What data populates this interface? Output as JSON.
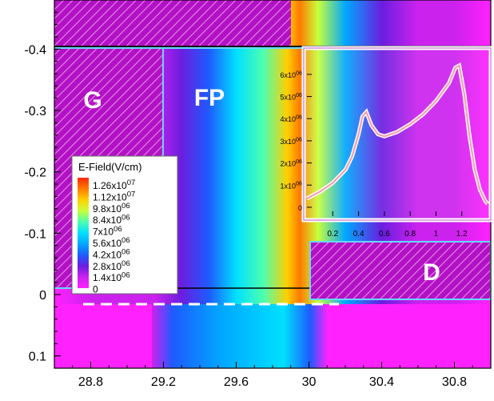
{
  "chart_data": [
    {
      "type": "heatmap",
      "title": "",
      "xlabel": "",
      "ylabel": "",
      "xlim": [
        28.6,
        31.0
      ],
      "ylim": [
        -0.48,
        0.12
      ],
      "y_inverted": true,
      "x_ticks": [
        "28.8",
        "29.2",
        "29.6",
        "30",
        "30.4",
        "30.8"
      ],
      "x_tick_values": [
        28.8,
        29.2,
        29.6,
        30.0,
        30.4,
        30.8
      ],
      "y_ticks": [
        "-0.4",
        "-0.3",
        "-0.2",
        "-0.1",
        "0",
        "0.1"
      ],
      "y_tick_values": [
        -0.4,
        -0.3,
        -0.2,
        -0.1,
        0.0,
        0.1
      ],
      "colorbar": {
        "title": "E-Field(V/cm)",
        "labels": [
          {
            "mantissa": "1.26x10",
            "exp": "07"
          },
          {
            "mantissa": "1.12x10",
            "exp": "07"
          },
          {
            "mantissa": "9.8x10",
            "exp": "06"
          },
          {
            "mantissa": "8.4x10",
            "exp": "06"
          },
          {
            "mantissa": "7x10",
            "exp": "06"
          },
          {
            "mantissa": "5.6x10",
            "exp": "06"
          },
          {
            "mantissa": "4.2x10",
            "exp": "06"
          },
          {
            "mantissa": "2.8x10",
            "exp": "06"
          },
          {
            "mantissa": "1.4x10",
            "exp": "06"
          },
          {
            "mantissa": "0",
            "exp": ""
          }
        ],
        "colors": [
          "#ff2a00",
          "#ff7a00",
          "#ffd000",
          "#c8ff3a",
          "#4dffb0",
          "#00e0ff",
          "#00a8ff",
          "#1e5bff",
          "#6a1ee0",
          "#cc22ee",
          "#ff22ff"
        ]
      },
      "regions": [
        {
          "label": "G"
        },
        {
          "label": "FP"
        },
        {
          "label": "D"
        }
      ],
      "field_profile_x": [
        28.6,
        28.8,
        29.0,
        29.15,
        29.3,
        29.45,
        29.6,
        29.75,
        29.88,
        29.95,
        30.05,
        30.2,
        30.4,
        30.6,
        30.8,
        31.0
      ],
      "field_profile_v": [
        0.05,
        0.06,
        0.09,
        0.12,
        0.2,
        0.33,
        0.48,
        0.62,
        0.8,
        0.88,
        0.68,
        0.38,
        0.22,
        0.12,
        0.06,
        0.03
      ],
      "colors": {
        "cyan_outline": "#66d9ff",
        "hatch_fill": "#b311c5",
        "hatch_stroke": "#e58ae8"
      }
    },
    {
      "type": "line",
      "title": "",
      "xlabel": "",
      "ylabel": "",
      "xlim": [
        0.0,
        1.4
      ],
      "ylim": [
        -400000,
        6900000
      ],
      "x_ticks": [
        "0.2",
        "0.4",
        "0.6",
        "0.8",
        "1",
        "1.2"
      ],
      "x_tick_values": [
        0.2,
        0.4,
        0.6,
        0.8,
        1.0,
        1.2
      ],
      "y_ticks": [
        {
          "mantissa": "0",
          "exp": ""
        },
        {
          "mantissa": "1x10",
          "exp": "06"
        },
        {
          "mantissa": "2x10",
          "exp": "06"
        },
        {
          "mantissa": "3x10",
          "exp": "06"
        },
        {
          "mantissa": "4x10",
          "exp": "06"
        },
        {
          "mantissa": "5x10",
          "exp": "06"
        },
        {
          "mantissa": "6x10",
          "exp": "06"
        }
      ],
      "y_tick_values": [
        0,
        1000000,
        2000000,
        3000000,
        4000000,
        5000000,
        6000000
      ],
      "x": [
        0.0,
        0.1,
        0.2,
        0.3,
        0.35,
        0.4,
        0.43,
        0.46,
        0.5,
        0.55,
        0.6,
        0.7,
        0.8,
        0.9,
        1.0,
        1.1,
        1.15,
        1.18,
        1.22,
        1.26,
        1.3,
        1.34,
        1.38,
        1.4
      ],
      "y": [
        400000,
        700000,
        1100000,
        1700000,
        2300000,
        3300000,
        4100000,
        4300000,
        3700000,
        3300000,
        3200000,
        3400000,
        3750000,
        4200000,
        4800000,
        5600000,
        6300000,
        6400000,
        5100000,
        3200000,
        1700000,
        800000,
        300000,
        150000
      ],
      "colors": {
        "line": "#f4a0b0",
        "outline": "#ffffff"
      }
    }
  ]
}
